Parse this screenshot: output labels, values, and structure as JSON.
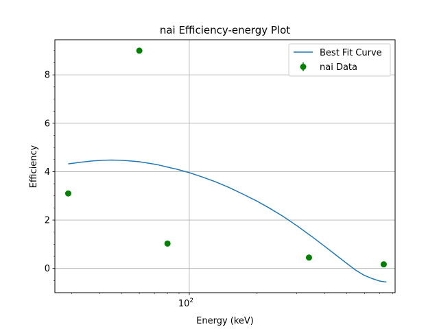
{
  "chart_data": {
    "type": "scatter",
    "title": "nai Efficiency-energy Plot",
    "xlabel": "Energy (keV)",
    "ylabel": "Efficiency",
    "xscale": "log",
    "xlim": [
      25.3,
      820
    ],
    "ylim": [
      -1.0,
      9.45
    ],
    "x_major_ticks": [
      {
        "value": 100,
        "label_base": "10",
        "label_exp": "2"
      }
    ],
    "x_minor_ticks": [
      30,
      40,
      50,
      60,
      70,
      80,
      90,
      200,
      300,
      400,
      500,
      600,
      700,
      800
    ],
    "y_ticks": [
      0,
      2,
      4,
      6,
      8
    ],
    "y_minor_ticks": [
      -0.5,
      0.5,
      1,
      1.5,
      2.5,
      3,
      3.5,
      4.5,
      5,
      5.5,
      6.5,
      7,
      7.5,
      8.5,
      9
    ],
    "grid": true,
    "legend_position": "upper right",
    "series": [
      {
        "name": "Best Fit Curve",
        "kind": "line",
        "color": "#1f77b4",
        "x": [
          29,
          33,
          37,
          41,
          45,
          50,
          55,
          60,
          66,
          72,
          80,
          88,
          100,
          115,
          130,
          150,
          175,
          200,
          230,
          260,
          300,
          350,
          400,
          450,
          500,
          550,
          600,
          650,
          700,
          750
        ],
        "y": [
          4.32,
          4.39,
          4.44,
          4.47,
          4.48,
          4.47,
          4.44,
          4.41,
          4.35,
          4.29,
          4.19,
          4.1,
          3.96,
          3.77,
          3.59,
          3.35,
          3.05,
          2.78,
          2.46,
          2.16,
          1.77,
          1.32,
          0.91,
          0.54,
          0.21,
          -0.08,
          -0.29,
          -0.42,
          -0.52,
          -0.56
        ]
      },
      {
        "name": "nai Data",
        "kind": "scatter",
        "color": "#008000",
        "x": [
          29,
          60,
          80,
          340,
          730
        ],
        "y": [
          3.1,
          9.0,
          1.03,
          0.45,
          0.17
        ],
        "yerr": [
          0.04,
          0.1,
          0.03,
          0.03,
          0.02
        ]
      }
    ]
  }
}
